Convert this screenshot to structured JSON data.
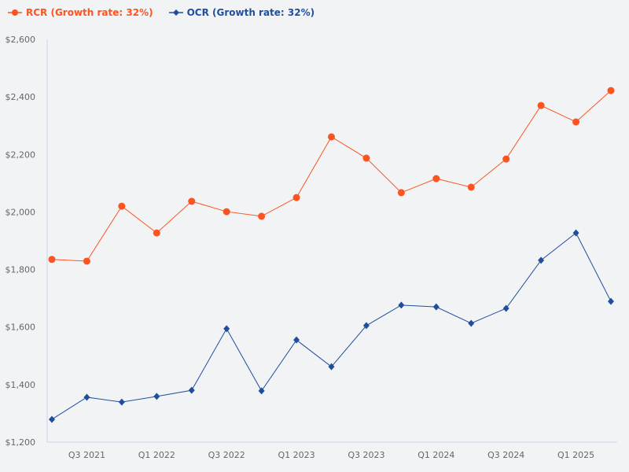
{
  "chart_data": {
    "type": "line",
    "title": "",
    "xlabel": "",
    "ylabel": "",
    "ylim": [
      1200,
      2600
    ],
    "yticks": [
      "$1,200",
      "$1,400",
      "$1,600",
      "$1,800",
      "$2,000",
      "$2,200",
      "$2,400",
      "$2,600"
    ],
    "ytick_values": [
      1200,
      1400,
      1600,
      1800,
      2000,
      2200,
      2400,
      2600
    ],
    "x": [
      "Q2 2021",
      "Q3 2021",
      "Q4 2021",
      "Q1 2022",
      "Q2 2022",
      "Q3 2022",
      "Q4 2022",
      "Q1 2023",
      "Q2 2023",
      "Q3 2023",
      "Q4 2023",
      "Q1 2024",
      "Q2 2024",
      "Q3 2024",
      "Q4 2024",
      "Q1 2025",
      "Q2 2025"
    ],
    "xtick_labels": [
      "Q3 2021",
      "Q1 2022",
      "Q3 2022",
      "Q1 2023",
      "Q3 2023",
      "Q1 2024",
      "Q3 2024",
      "Q1 2025"
    ],
    "grid": false,
    "legend_position": "top-left",
    "series": [
      {
        "name": "RCR (Growth rate: 32%)",
        "color": "#fc5421",
        "marker": "circle",
        "values": [
          1835,
          1829,
          2020,
          1927,
          2037,
          2001,
          1985,
          2050,
          2261,
          2187,
          2067,
          2116,
          2086,
          2184,
          2370,
          2313,
          2422
        ]
      },
      {
        "name": "OCR (Growth rate: 32%)",
        "color": "#1f4e9e",
        "marker": "diamond",
        "values": [
          1279,
          1356,
          1339,
          1359,
          1380,
          1594,
          1378,
          1555,
          1462,
          1605,
          1676,
          1670,
          1613,
          1665,
          1832,
          1927,
          1689
        ]
      }
    ]
  }
}
